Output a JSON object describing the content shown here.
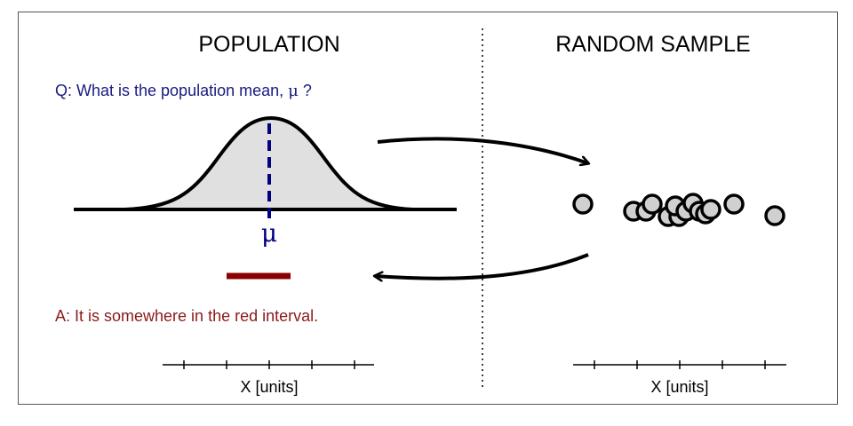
{
  "population": {
    "title": "POPULATION",
    "question_prefix": "Q: What is the population mean, ",
    "question_symbol": "μ",
    "question_suffix": " ?",
    "mean_symbol": "μ",
    "answer": "A: It is somewhere in the red interval.",
    "axis_label": "X [units]"
  },
  "sample": {
    "title": "RANDOM SAMPLE",
    "axis_label": "X [units]"
  },
  "colors": {
    "question": "#1a1a80",
    "answer": "#8b1a1a",
    "interval": "#8b0000",
    "mean_line": "#000080",
    "curve_fill": "#e0e0e0",
    "point_fill": "#d0d0d0"
  }
}
